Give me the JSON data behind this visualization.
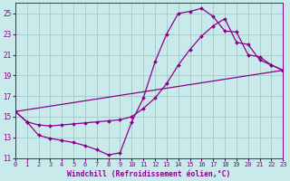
{
  "xlabel": "Windchill (Refroidissement éolien,°C)",
  "bg_color": "#c8eaea",
  "line_color": "#8b008b",
  "grid_color": "#aacccc",
  "xlim": [
    0,
    23
  ],
  "ylim": [
    11,
    26
  ],
  "yticks": [
    11,
    13,
    15,
    17,
    19,
    21,
    23,
    25
  ],
  "xticks": [
    0,
    1,
    2,
    3,
    4,
    5,
    6,
    7,
    8,
    9,
    10,
    11,
    12,
    13,
    14,
    15,
    16,
    17,
    18,
    19,
    20,
    21,
    22,
    23
  ],
  "series": [
    {
      "x": [
        0,
        1,
        2,
        3,
        4,
        5,
        6,
        7,
        8,
        9,
        10,
        11,
        12,
        13,
        14,
        15,
        16,
        17,
        18,
        19,
        20,
        21,
        22,
        23
      ],
      "y": [
        15.5,
        14.5,
        13.2,
        12.9,
        12.7,
        12.5,
        12.2,
        11.8,
        11.3,
        11.5,
        14.5,
        16.8,
        20.3,
        23.0,
        25.0,
        25.2,
        25.5,
        24.7,
        23.3,
        23.2,
        21.0,
        20.8,
        20.0,
        19.5
      ]
    },
    {
      "x": [
        0,
        1,
        2,
        3,
        4,
        5,
        6,
        7,
        8,
        9,
        10,
        11,
        12,
        13,
        14,
        15,
        16,
        17,
        18,
        19,
        20,
        21,
        22,
        23
      ],
      "y": [
        15.5,
        14.5,
        14.2,
        14.1,
        14.2,
        14.3,
        14.4,
        14.5,
        14.6,
        14.7,
        15.0,
        15.8,
        16.8,
        18.2,
        20.0,
        21.5,
        22.8,
        23.8,
        24.5,
        22.2,
        22.0,
        20.5,
        20.0,
        19.5
      ]
    },
    {
      "x": [
        0,
        23
      ],
      "y": [
        15.5,
        19.5
      ]
    }
  ]
}
